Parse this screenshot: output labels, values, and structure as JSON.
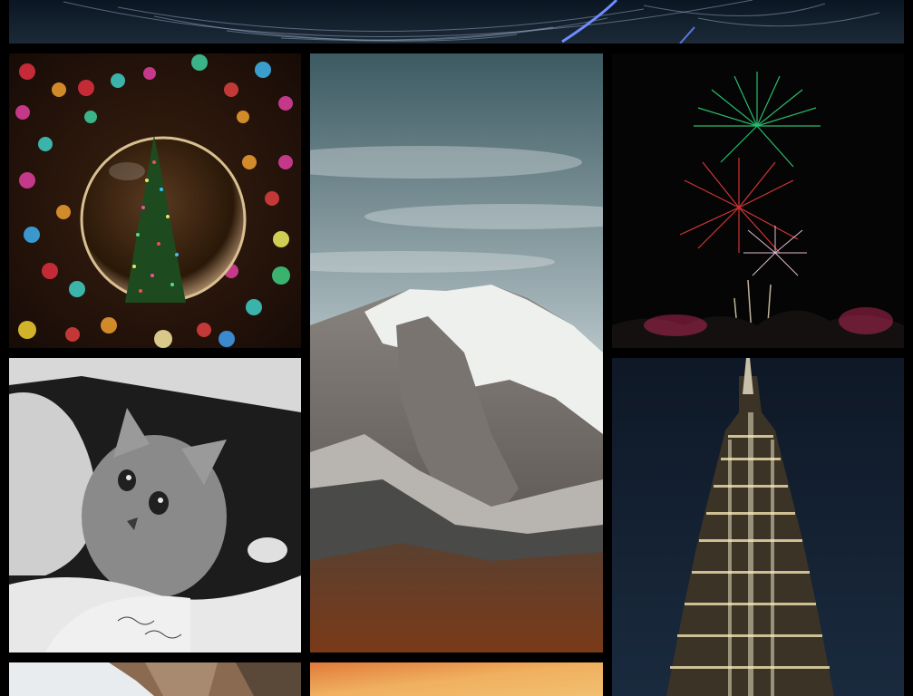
{
  "gallery": {
    "background": "#000000",
    "tiles": [
      {
        "id": "startrails",
        "subject": "star-trails-night-sky",
        "palette": [
          "#0b1a2a",
          "#4a6bd0"
        ]
      },
      {
        "id": "ornament",
        "subject": "christmas-tree-reflected-in-glass-ornament",
        "palette": [
          "#1a0d08",
          "#e23040",
          "#3fd0c8"
        ]
      },
      {
        "id": "mountain",
        "subject": "snow-capped-mountain-peak-under-clouds",
        "palette": [
          "#3c5a62",
          "#eef0ee",
          "#6a3a20"
        ]
      },
      {
        "id": "fireworks",
        "subject": "fireworks-over-night-crowd",
        "palette": [
          "#050505",
          "#2ed07a",
          "#e83a3a"
        ]
      },
      {
        "id": "kitten",
        "subject": "black-and-white-kitten-in-hands",
        "palette": [
          "#1c1c1c",
          "#9a9a9a",
          "#e8e8e8"
        ]
      },
      {
        "id": "tower",
        "subject": "illuminated-skyscraper-at-night",
        "palette": [
          "#0e1826",
          "#e8d8a8"
        ]
      },
      {
        "id": "canyon",
        "subject": "canyon-cliffs",
        "palette": [
          "#e8ecef",
          "#8a6a50"
        ]
      },
      {
        "id": "sunset",
        "subject": "orange-sunset-sky",
        "palette": [
          "#e07a3a",
          "#f0c070"
        ]
      }
    ]
  }
}
